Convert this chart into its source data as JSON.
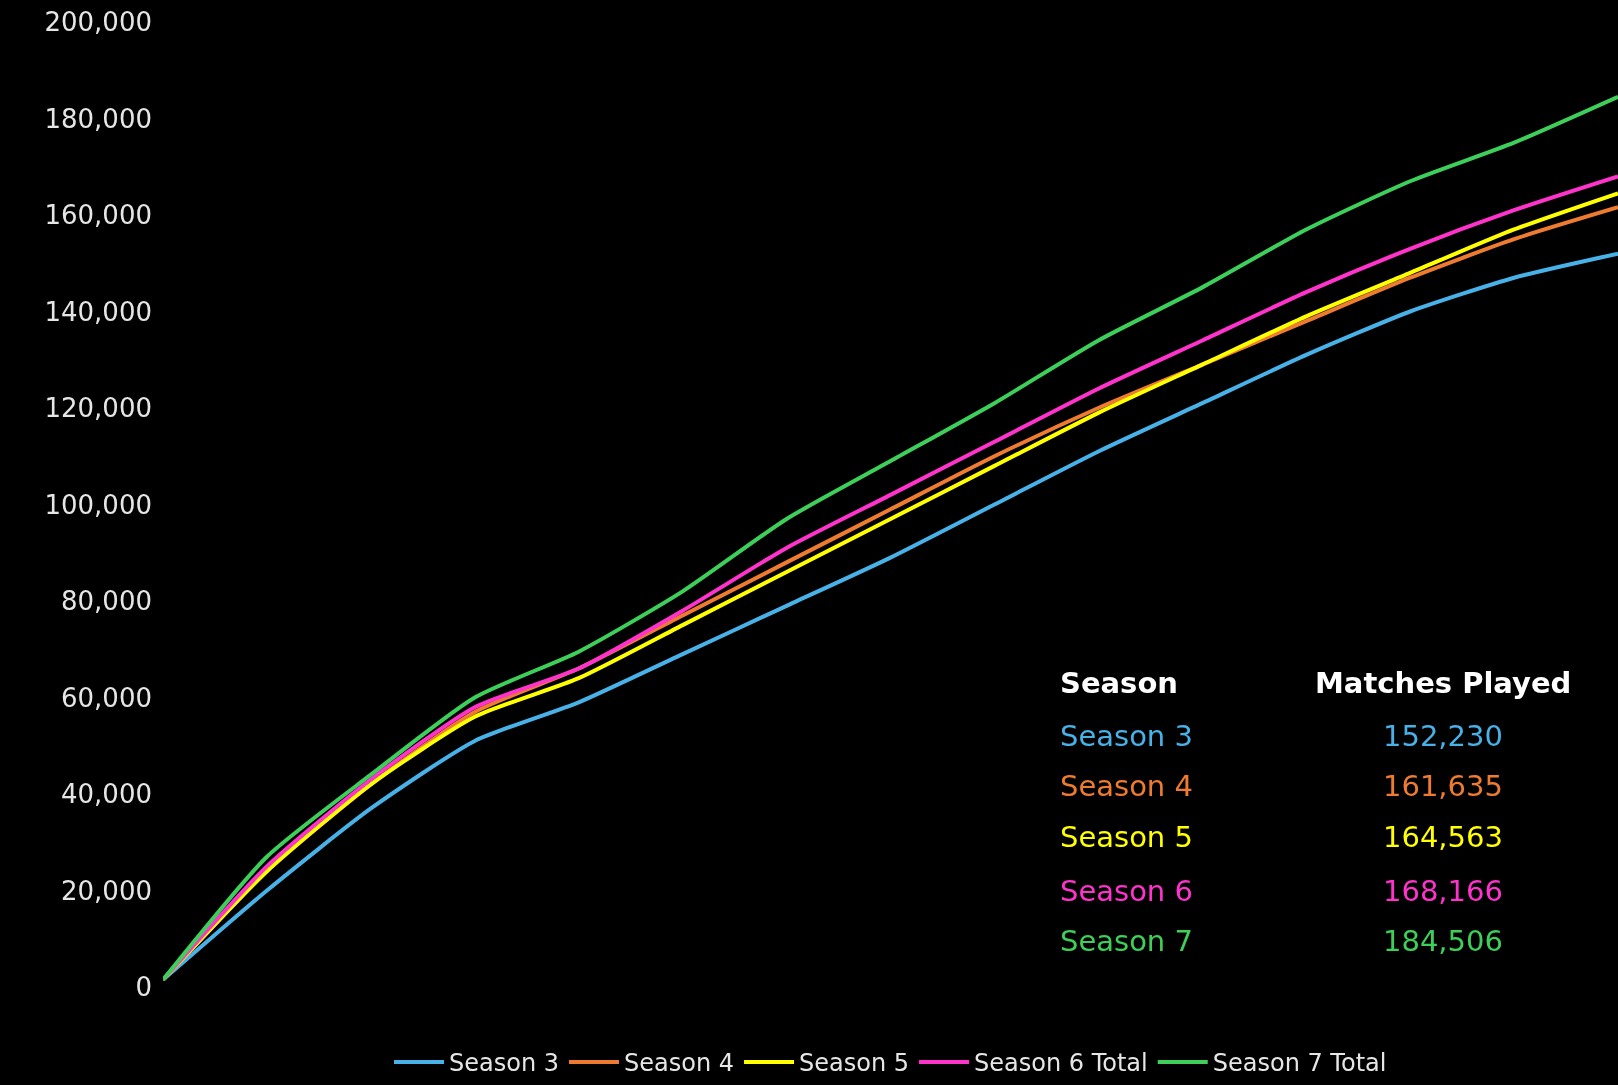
{
  "chart_data": {
    "type": "line",
    "categories": [
      null,
      null,
      null,
      null,
      null,
      null,
      null,
      null,
      null,
      null,
      null,
      null,
      null,
      null,
      null
    ],
    "series": [
      {
        "name": "Season 3",
        "color": "#47b1e8",
        "values": [
          1500,
          20000,
          37000,
          51000,
          59000,
          69000,
          79000,
          89000,
          100000,
          111000,
          121000,
          131000,
          140000,
          147000,
          152000
        ]
      },
      {
        "name": "Season 4",
        "color": "#ee7b30",
        "values": [
          1500,
          24000,
          42000,
          57000,
          66000,
          77000,
          88000,
          99000,
          110000,
          120000,
          129000,
          138000,
          147000,
          155000,
          161600
        ]
      },
      {
        "name": "Season 5",
        "color": "#ffff00",
        "values": [
          1500,
          24000,
          42000,
          56000,
          64000,
          75000,
          86000,
          97000,
          108000,
          119000,
          129000,
          139000,
          148000,
          157000,
          164500
        ]
      },
      {
        "name": "Season 6 Total",
        "color": "#ff33cc",
        "values": [
          1500,
          25000,
          43000,
          58000,
          66000,
          78000,
          91000,
          102000,
          113000,
          124000,
          134000,
          144000,
          153000,
          161000,
          168000
        ]
      },
      {
        "name": "Season 7 Total",
        "color": "#3dcf5a",
        "values": [
          1500,
          27000,
          44000,
          60000,
          69500,
          82000,
          97000,
          109000,
          121000,
          134000,
          145000,
          157000,
          167000,
          175000,
          184500
        ]
      }
    ],
    "annotations": [
      "Season",
      "Matches Played",
      "Season 3",
      "152,230",
      "Season 4",
      "161,635",
      "Season 5",
      "164,563",
      "Season 6",
      "168,166",
      "Season 7",
      "184,506"
    ],
    "ylim": [
      0,
      200000
    ],
    "yticks": [
      {
        "value": 0,
        "label": "0"
      },
      {
        "value": 20000,
        "label": "20,000"
      },
      {
        "value": 40000,
        "label": "40,000"
      },
      {
        "value": 60000,
        "label": "60,000"
      },
      {
        "value": 80000,
        "label": "80,000"
      },
      {
        "value": 100000,
        "label": "100,000"
      },
      {
        "value": 120000,
        "label": "120,000"
      },
      {
        "value": 140000,
        "label": "140,000"
      },
      {
        "value": 160000,
        "label": "160,000"
      },
      {
        "value": 180000,
        "label": "180,000"
      },
      {
        "value": 200000,
        "label": "200,000"
      }
    ],
    "grid": false,
    "legend": "bottom",
    "marker": "none",
    "line_style": "solid"
  }
}
